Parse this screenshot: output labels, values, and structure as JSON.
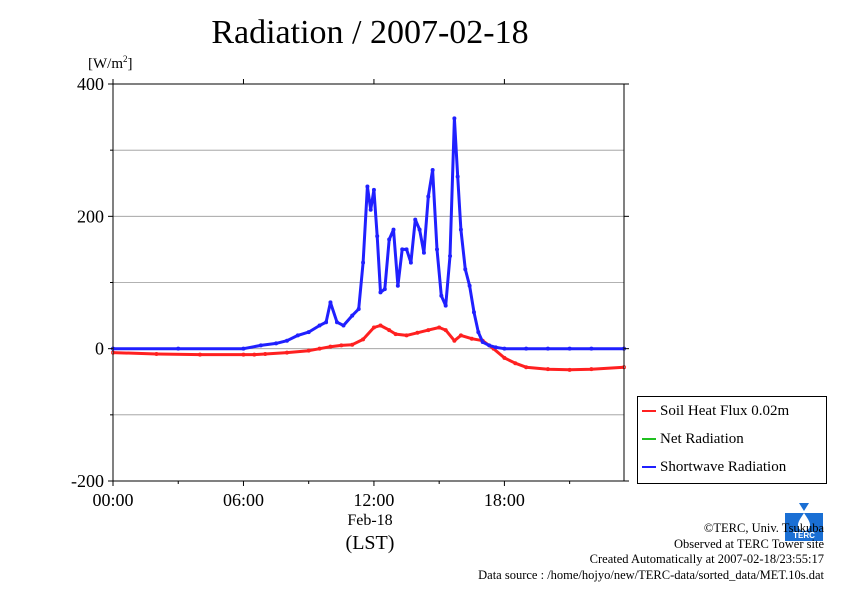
{
  "header": {
    "title": "Radiation / 2007-02-18",
    "unit_prefix": "[W/m",
    "unit_exp": "2",
    "unit_suffix": "]"
  },
  "xaxis": {
    "date_label": "Feb-18",
    "tz_label": "(LST)"
  },
  "legend": [
    {
      "name": "Soil Heat Flux 0.02m",
      "color": "#ff2020"
    },
    {
      "name": "Net Radiation",
      "color": "#20c020"
    },
    {
      "name": "Shortwave Radiation",
      "color": "#2020ff"
    }
  ],
  "credits": {
    "line1": "©TERC, Univ. Tsukuba",
    "line2": "Observed at TERC Tower site",
    "line3": "Created Automatically at 2007-02-18/23:55:17",
    "line4": "Data source : /home/hojyo/new/TERC-data/sorted_data/MET.10s.dat"
  },
  "logo": {
    "text": "TERC",
    "color": "#1a6fd4"
  },
  "chart_data": {
    "type": "line",
    "title": "Radiation / 2007-02-18",
    "ylabel": "[W/m2]",
    "xlabel": "Feb-18 (LST)",
    "xlim": [
      0,
      23.5
    ],
    "ylim": [
      -200,
      400
    ],
    "yticks": [
      400,
      200,
      0,
      -200
    ],
    "ytick_labels": [
      "400",
      "200",
      "0",
      "-200"
    ],
    "xticks": [
      0,
      6,
      12,
      18
    ],
    "xtick_labels": [
      "00:00",
      "06:00",
      "12:00",
      "18:00"
    ],
    "grid": true,
    "legend_position": "bottom-right outside",
    "series": [
      {
        "name": "Soil Heat Flux 0.02m",
        "color": "#ff2020",
        "x": [
          0,
          2,
          4,
          6,
          6.5,
          7,
          8,
          9,
          9.5,
          10,
          10.5,
          11,
          11.5,
          12,
          12.3,
          12.7,
          13,
          13.5,
          14,
          14.5,
          15,
          15.3,
          15.7,
          16,
          16.5,
          17,
          17.5,
          18,
          18.5,
          19,
          20,
          21,
          22,
          23.5
        ],
        "y": [
          -6,
          -8,
          -9,
          -9,
          -9,
          -8,
          -6,
          -3,
          0,
          3,
          5,
          6,
          14,
          32,
          35,
          28,
          22,
          20,
          24,
          28,
          32,
          28,
          12,
          20,
          15,
          12,
          0,
          -14,
          -22,
          -28,
          -31,
          -32,
          -31,
          -28
        ]
      },
      {
        "name": "Net Radiation",
        "color": "#20c020",
        "x": [],
        "y": []
      },
      {
        "name": "Shortwave Radiation",
        "color": "#2020ff",
        "x": [
          0,
          3,
          6,
          6.8,
          7.5,
          8,
          8.5,
          9,
          9.5,
          9.8,
          10,
          10.3,
          10.6,
          11,
          11.3,
          11.5,
          11.7,
          11.85,
          12,
          12.15,
          12.3,
          12.5,
          12.7,
          12.9,
          13.1,
          13.3,
          13.5,
          13.7,
          13.9,
          14.1,
          14.3,
          14.5,
          14.7,
          14.9,
          15.1,
          15.3,
          15.5,
          15.7,
          15.85,
          16,
          16.2,
          16.4,
          16.6,
          16.8,
          17,
          17.3,
          17.6,
          18,
          19,
          20,
          21,
          22,
          23.5
        ],
        "y": [
          0,
          0,
          0,
          5,
          8,
          12,
          20,
          25,
          35,
          40,
          70,
          40,
          35,
          50,
          60,
          130,
          245,
          210,
          240,
          170,
          85,
          90,
          165,
          180,
          95,
          150,
          150,
          130,
          195,
          180,
          145,
          230,
          270,
          150,
          80,
          65,
          140,
          348,
          260,
          180,
          120,
          95,
          55,
          25,
          10,
          5,
          2,
          0,
          0,
          0,
          0,
          0,
          0
        ]
      }
    ]
  }
}
